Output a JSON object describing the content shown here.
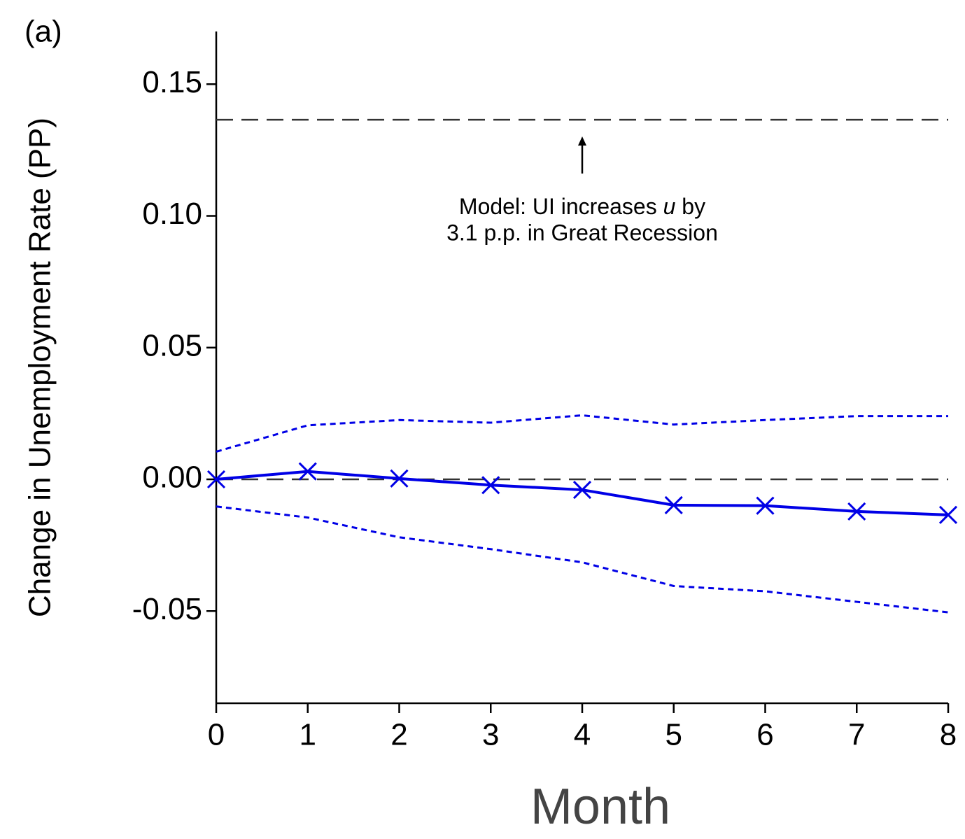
{
  "chart_data": {
    "type": "line",
    "panel_label": "(a)",
    "xlabel": "Month",
    "ylabel": "Change in Unemployment Rate (PP)",
    "x": [
      0,
      1,
      2,
      3,
      4,
      5,
      6,
      7,
      8
    ],
    "series": [
      {
        "color": "#0000e6",
        "style": "solid",
        "marker": "x",
        "values": [
          0,
          0.003,
          0.0003,
          -0.0022,
          -0.004,
          -0.0098,
          -0.01,
          -0.0122,
          -0.0135
        ]
      },
      {
        "color": "#0000e6",
        "style": "dotted",
        "values": [
          0.0105,
          0.0205,
          0.0225,
          0.0215,
          0.0243,
          0.0208,
          0.0225,
          0.024,
          0.024
        ]
      },
      {
        "color": "#0000e6",
        "style": "dotted",
        "values": [
          -0.0103,
          -0.0145,
          -0.022,
          -0.0265,
          -0.0315,
          -0.0405,
          -0.0425,
          -0.0465,
          -0.0505
        ]
      }
    ],
    "reference_lines": [
      0.1365,
      0
    ],
    "annotation": {
      "line1": [
        "Model: UI increases ",
        "u",
        " by"
      ],
      "line2": "3.1 p.p. in Great Recession"
    },
    "xlim": [
      0,
      8
    ],
    "xticks": [
      0,
      1,
      2,
      3,
      4,
      5,
      6,
      7,
      8
    ],
    "ylim": [
      -0.085,
      0.17
    ],
    "yticks": [
      {
        "value": -0.05,
        "label": "-0.05"
      },
      {
        "value": 0,
        "label": "0.00"
      },
      {
        "value": 0.05,
        "label": "0.05"
      },
      {
        "value": 0.1,
        "label": "0.10"
      },
      {
        "value": 0.15,
        "label": "0.15"
      }
    ]
  }
}
